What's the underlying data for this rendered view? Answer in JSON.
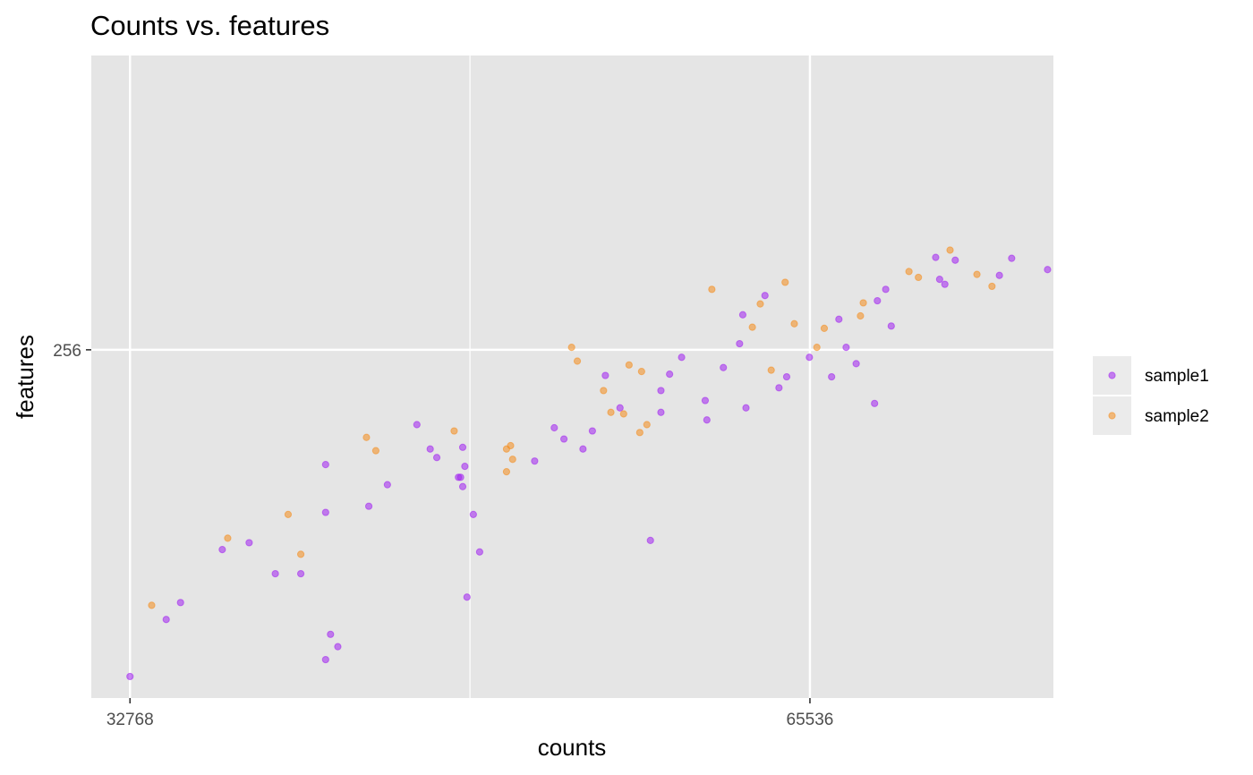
{
  "chart_data": {
    "type": "scatter",
    "title": "Counts vs. features",
    "xlabel": "counts",
    "ylabel": "features",
    "x_scale": "log2",
    "y_scale": "log2",
    "xlim": [
      31500,
      84000
    ],
    "ylim": [
      85,
      650
    ],
    "x_ticks": [
      {
        "value": 32768,
        "label": "32768"
      },
      {
        "value": 65536,
        "label": "65536"
      }
    ],
    "x_minor_gridlines": [
      46341,
      92682
    ],
    "y_ticks": [
      {
        "value": 256,
        "label": "256"
      }
    ],
    "grid": true,
    "legend_position": "right",
    "series": [
      {
        "name": "sample1",
        "color": "#a020f0",
        "points": [
          [
            32768,
            91
          ],
          [
            34000,
            109
          ],
          [
            34500,
            115
          ],
          [
            36000,
            136
          ],
          [
            37000,
            139
          ],
          [
            40000,
            178
          ],
          [
            38000,
            126
          ],
          [
            39000,
            126
          ],
          [
            40500,
            100
          ],
          [
            40000,
            96
          ],
          [
            40200,
            104
          ],
          [
            40000,
            153
          ],
          [
            41800,
            156
          ],
          [
            42600,
            167
          ],
          [
            46500,
            152
          ],
          [
            46000,
            166
          ],
          [
            46100,
            177
          ],
          [
            46000,
            188
          ],
          [
            46800,
            135
          ],
          [
            43900,
            202
          ],
          [
            44500,
            187
          ],
          [
            44800,
            182
          ],
          [
            45800,
            171
          ],
          [
            45900,
            171
          ],
          [
            46200,
            117
          ],
          [
            49500,
            180
          ],
          [
            50500,
            200
          ],
          [
            51000,
            193
          ],
          [
            52000,
            187
          ],
          [
            52500,
            198
          ],
          [
            53200,
            236
          ],
          [
            54000,
            213
          ],
          [
            55700,
            140
          ],
          [
            56300,
            210
          ],
          [
            56300,
            225
          ],
          [
            56800,
            237
          ],
          [
            57500,
            250
          ],
          [
            58900,
            218
          ],
          [
            59000,
            205
          ],
          [
            60000,
            242
          ],
          [
            61000,
            261
          ],
          [
            61400,
            213
          ],
          [
            62600,
            304
          ],
          [
            61200,
            286
          ],
          [
            63500,
            227
          ],
          [
            64000,
            235
          ],
          [
            65500,
            250
          ],
          [
            67000,
            235
          ],
          [
            67500,
            282
          ],
          [
            68000,
            258
          ],
          [
            68700,
            245
          ],
          [
            70000,
            216
          ],
          [
            70200,
            299
          ],
          [
            70800,
            310
          ],
          [
            71200,
            276
          ],
          [
            74500,
            343
          ],
          [
            74800,
            320
          ],
          [
            75200,
            315
          ],
          [
            76000,
            340
          ],
          [
            79500,
            324
          ],
          [
            80500,
            342
          ],
          [
            83500,
            330
          ]
        ]
      },
      {
        "name": "sample2",
        "color": "#f48c1c",
        "points": [
          [
            33500,
            114
          ],
          [
            36200,
            141
          ],
          [
            38500,
            152
          ],
          [
            39000,
            134
          ],
          [
            41700,
            194
          ],
          [
            42100,
            186
          ],
          [
            45600,
            198
          ],
          [
            48100,
            174
          ],
          [
            48100,
            187
          ],
          [
            48300,
            189
          ],
          [
            48400,
            181
          ],
          [
            51400,
            258
          ],
          [
            51700,
            247
          ],
          [
            53100,
            225
          ],
          [
            53500,
            210
          ],
          [
            54500,
            244
          ],
          [
            55200,
            239
          ],
          [
            54200,
            209
          ],
          [
            55100,
            197
          ],
          [
            55500,
            202
          ],
          [
            59300,
            310
          ],
          [
            61800,
            275
          ],
          [
            62300,
            296
          ],
          [
            63000,
            240
          ],
          [
            63900,
            317
          ],
          [
            64500,
            278
          ],
          [
            66000,
            258
          ],
          [
            66500,
            274
          ],
          [
            69000,
            285
          ],
          [
            69200,
            297
          ],
          [
            72500,
            328
          ],
          [
            73200,
            322
          ],
          [
            75600,
            351
          ],
          [
            77700,
            325
          ],
          [
            78900,
            313
          ]
        ]
      }
    ]
  }
}
